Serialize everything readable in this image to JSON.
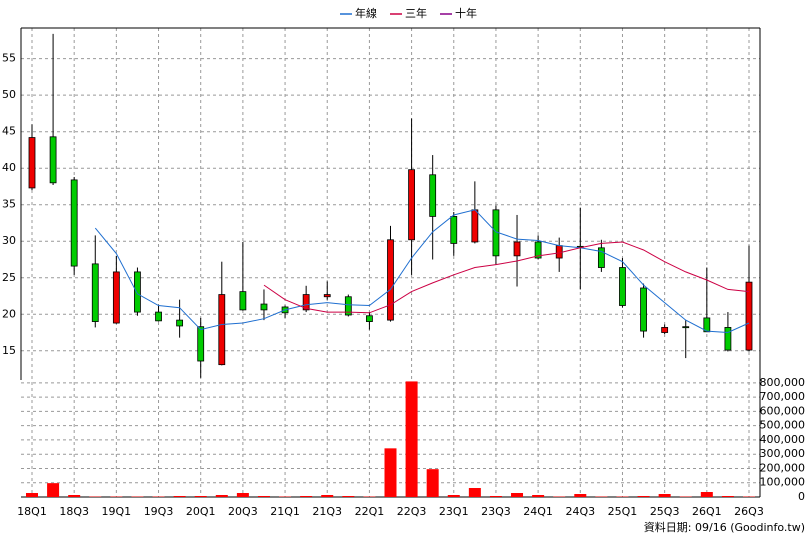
{
  "chart_data": {
    "type": "candlestick",
    "legend": "top",
    "grid": true,
    "up_color": "#ee0000",
    "down_color": "#00cc00",
    "categories": [
      "18Q1",
      null,
      "18Q3",
      null,
      "19Q1",
      null,
      "19Q3",
      null,
      "20Q1",
      null,
      "20Q3",
      null,
      "21Q1",
      null,
      "21Q3",
      null,
      "22Q1",
      null,
      "22Q3",
      null,
      "23Q1",
      null,
      "23Q3",
      null,
      "24Q1",
      null,
      "24Q3",
      null,
      "25Q1",
      null,
      "25Q3",
      null,
      "26Q1",
      null,
      "26Q3"
    ],
    "open": [
      37.3,
      44.3,
      38.4,
      26.9,
      18.8,
      25.8,
      20.3,
      19.2,
      18.3,
      13.1,
      23.1,
      21.4,
      21.0,
      20.6,
      22.4,
      22.4,
      19.8,
      19.2,
      30.2,
      39.1,
      33.4,
      29.9,
      34.3,
      28.0,
      29.9,
      27.7,
      29.3,
      29.1,
      26.4,
      23.6,
      17.5,
      18.3,
      19.5,
      18.2,
      15.1
    ],
    "high": [
      46.0,
      58.4,
      38.8,
      30.8,
      28.0,
      26.4,
      21.3,
      22.0,
      19.5,
      27.2,
      29.9,
      23.4,
      21.2,
      23.9,
      24.5,
      22.7,
      20.3,
      32.1,
      46.8,
      41.8,
      34.0,
      38.2,
      34.9,
      33.6,
      30.8,
      30.5,
      34.6,
      30.2,
      27.7,
      24.2,
      18.6,
      19.2,
      26.4,
      20.3,
      29.4
    ],
    "low": [
      37.0,
      37.7,
      25.4,
      18.2,
      18.7,
      19.8,
      19.0,
      16.8,
      11.3,
      13.0,
      20.5,
      19.2,
      19.5,
      20.3,
      22.0,
      19.7,
      17.9,
      19.0,
      25.4,
      27.5,
      28.0,
      29.7,
      26.8,
      23.8,
      27.5,
      25.8,
      23.4,
      25.8,
      20.9,
      16.8,
      17.3,
      14.0,
      17.6,
      14.9,
      14.9
    ],
    "close": [
      44.2,
      38.0,
      26.6,
      19.0,
      25.8,
      20.3,
      19.1,
      18.4,
      13.6,
      22.7,
      20.6,
      20.6,
      20.2,
      22.7,
      22.7,
      19.9,
      19.0,
      30.2,
      39.8,
      33.4,
      29.7,
      34.3,
      28.0,
      29.9,
      27.7,
      29.4,
      29.2,
      26.4,
      21.2,
      17.7,
      18.2,
      18.2,
      17.6,
      15.1,
      24.4
    ],
    "series": [
      {
        "name": "年線",
        "color": "#1f6fd0",
        "values": [
          null,
          null,
          null,
          31.8,
          28.3,
          22.8,
          21.2,
          20.9,
          17.9,
          18.6,
          18.8,
          19.4,
          20.6,
          21.3,
          21.6,
          21.3,
          21.2,
          23.4,
          27.7,
          31.3,
          33.6,
          34.3,
          31.3,
          30.3,
          30.1,
          29.4,
          29.1,
          28.6,
          27.2,
          24.0,
          21.6,
          19.2,
          17.7,
          17.5,
          18.8
        ]
      },
      {
        "name": "三年",
        "color": "#cc0044",
        "values": [
          null,
          null,
          null,
          null,
          null,
          null,
          null,
          null,
          null,
          null,
          null,
          24.0,
          22.0,
          20.8,
          20.3,
          20.3,
          20.2,
          21.3,
          23.1,
          24.3,
          25.4,
          26.4,
          26.8,
          27.3,
          28.0,
          28.4,
          29.1,
          29.7,
          29.9,
          28.8,
          27.2,
          25.8,
          24.7,
          23.4,
          23.1
        ]
      },
      {
        "name": "十年",
        "color": "#880088",
        "values": [
          null,
          null,
          null,
          null,
          null,
          null,
          null,
          null,
          null,
          null,
          null,
          null,
          null,
          null,
          null,
          null,
          null,
          null,
          null,
          null,
          null,
          null,
          null,
          null,
          null,
          null,
          null,
          null,
          null,
          null,
          null,
          null,
          null,
          null,
          null
        ]
      }
    ],
    "volume": {
      "axis": "y2",
      "color": "#ff0000",
      "values": [
        28000,
        97000,
        14000,
        3000,
        3000,
        3000,
        3000,
        7000,
        7000,
        14000,
        28000,
        7000,
        3000,
        7000,
        14000,
        7000,
        3000,
        341000,
        810000,
        195000,
        14000,
        63000,
        7000,
        28000,
        14000,
        3000,
        21000,
        3000,
        3000,
        7000,
        21000,
        3000,
        35000,
        7000,
        3000
      ]
    },
    "ylim": [
      11,
      59.2
    ],
    "yticks": [
      15,
      20,
      25,
      30,
      35,
      40,
      45,
      50,
      55
    ],
    "y2lim": [
      0,
      820000
    ],
    "y2ticks": [
      0,
      {
        "value": 100000,
        "label": "100,000"
      },
      {
        "value": 200000,
        "label": "200,000"
      },
      {
        "value": 300000,
        "label": "300,000"
      },
      {
        "value": 400000,
        "label": "400,000"
      },
      {
        "value": 500000,
        "label": "500,000"
      },
      {
        "value": 600000,
        "label": "600,000"
      },
      {
        "value": 700000,
        "label": "700,000"
      },
      {
        "value": 800000,
        "label": "800,000"
      }
    ],
    "footer": "資料日期: 09/16 (Goodinfo.tw)"
  }
}
